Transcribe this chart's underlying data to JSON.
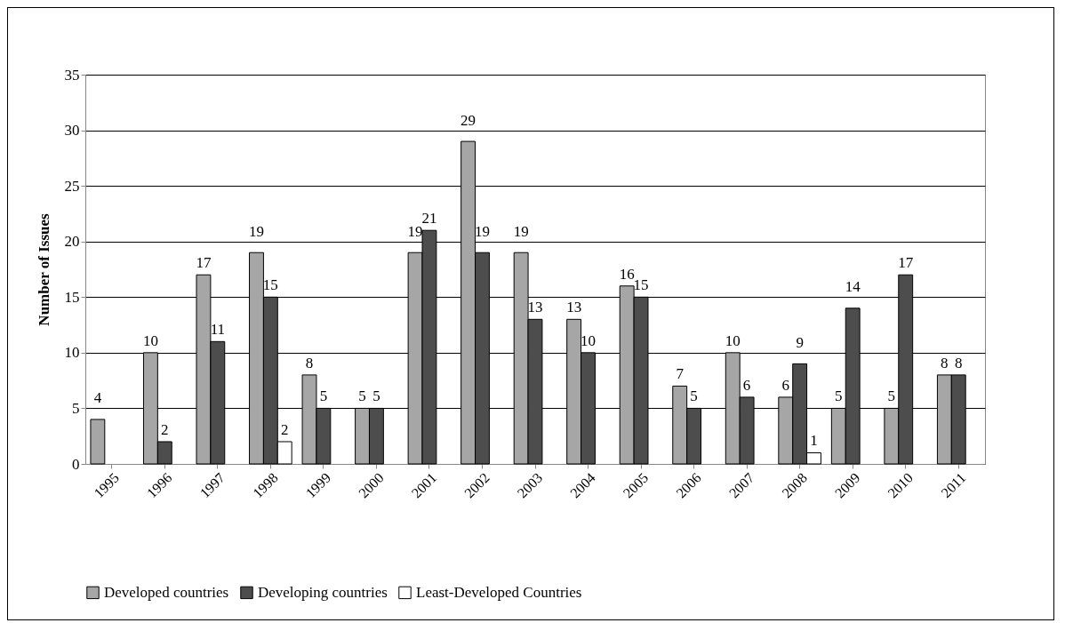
{
  "chart_data": {
    "type": "bar",
    "ylabel": "Number of Issues",
    "categories": [
      "1995",
      "1996",
      "1997",
      "1998",
      "1999",
      "2000",
      "2001",
      "2002",
      "2003",
      "2004",
      "2005",
      "2006",
      "2007",
      "2008",
      "2009",
      "2010",
      "2011"
    ],
    "series": [
      {
        "name": "Developed countries",
        "color": "#a6a6a6",
        "values": [
          4,
          10,
          17,
          19,
          8,
          5,
          19,
          29,
          19,
          13,
          16,
          7,
          10,
          6,
          5,
          5,
          8
        ]
      },
      {
        "name": "Developing countries",
        "color": "#4d4d4d",
        "values": [
          null,
          2,
          11,
          15,
          5,
          5,
          21,
          19,
          13,
          10,
          15,
          5,
          6,
          9,
          14,
          17,
          8
        ]
      },
      {
        "name": "Least-Developed Countries",
        "color": "#ffffff",
        "values": [
          null,
          null,
          null,
          2,
          null,
          null,
          null,
          null,
          null,
          null,
          null,
          null,
          null,
          1,
          null,
          null,
          null
        ]
      }
    ],
    "ylim": [
      0,
      35
    ],
    "yticks": [
      0,
      5,
      10,
      15,
      20,
      25,
      30,
      35
    ],
    "grid": "y",
    "legend": "bottom",
    "data_labels": true
  }
}
